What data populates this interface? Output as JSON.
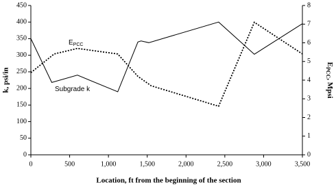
{
  "chart_data": {
    "type": "line",
    "xlabel": "Location, ft from the beginning of the section",
    "ylabel": "k, psi/in",
    "y2label": {
      "main": "E",
      "sub": "PCC",
      "rest": ", Mpsi"
    },
    "xlim": [
      0,
      3500
    ],
    "xticks": [
      0,
      500,
      {
        "value": 1000,
        "label": "1,000"
      },
      {
        "value": 1500,
        "label": "1,500"
      },
      {
        "value": 2000,
        "label": "2,000"
      },
      {
        "value": 2500,
        "label": "2,500"
      },
      {
        "value": 3000,
        "label": "3,000"
      },
      {
        "value": 3500,
        "label": "3,500"
      }
    ],
    "ylim": [
      0,
      450
    ],
    "yticks": [
      0,
      50,
      100,
      150,
      200,
      250,
      300,
      350,
      400,
      450
    ],
    "y2lim": [
      0,
      8
    ],
    "y2ticks": [
      0,
      1,
      2,
      3,
      4,
      5,
      6,
      7,
      8
    ],
    "series": [
      {
        "name": "Subgrade k",
        "color": "#000000",
        "dash": "solid",
        "x": [
          0,
          270,
          600,
          1120,
          1380,
          1420,
          1520,
          2420,
          2880,
          3500
        ],
        "values": [
          350,
          218,
          240,
          190,
          340,
          343,
          338,
          400,
          303,
          395
        ]
      },
      {
        "name": "E",
        "name_sub": "PCC",
        "color": "#000000",
        "dash": "dotted",
        "axis": "y2",
        "x": [
          0,
          300,
          600,
          1120,
          1380,
          1550,
          2420,
          2880,
          3500
        ],
        "values": [
          4.4,
          5.4,
          5.7,
          5.4,
          4.2,
          3.7,
          2.6,
          7.1,
          5.4
        ]
      }
    ]
  }
}
